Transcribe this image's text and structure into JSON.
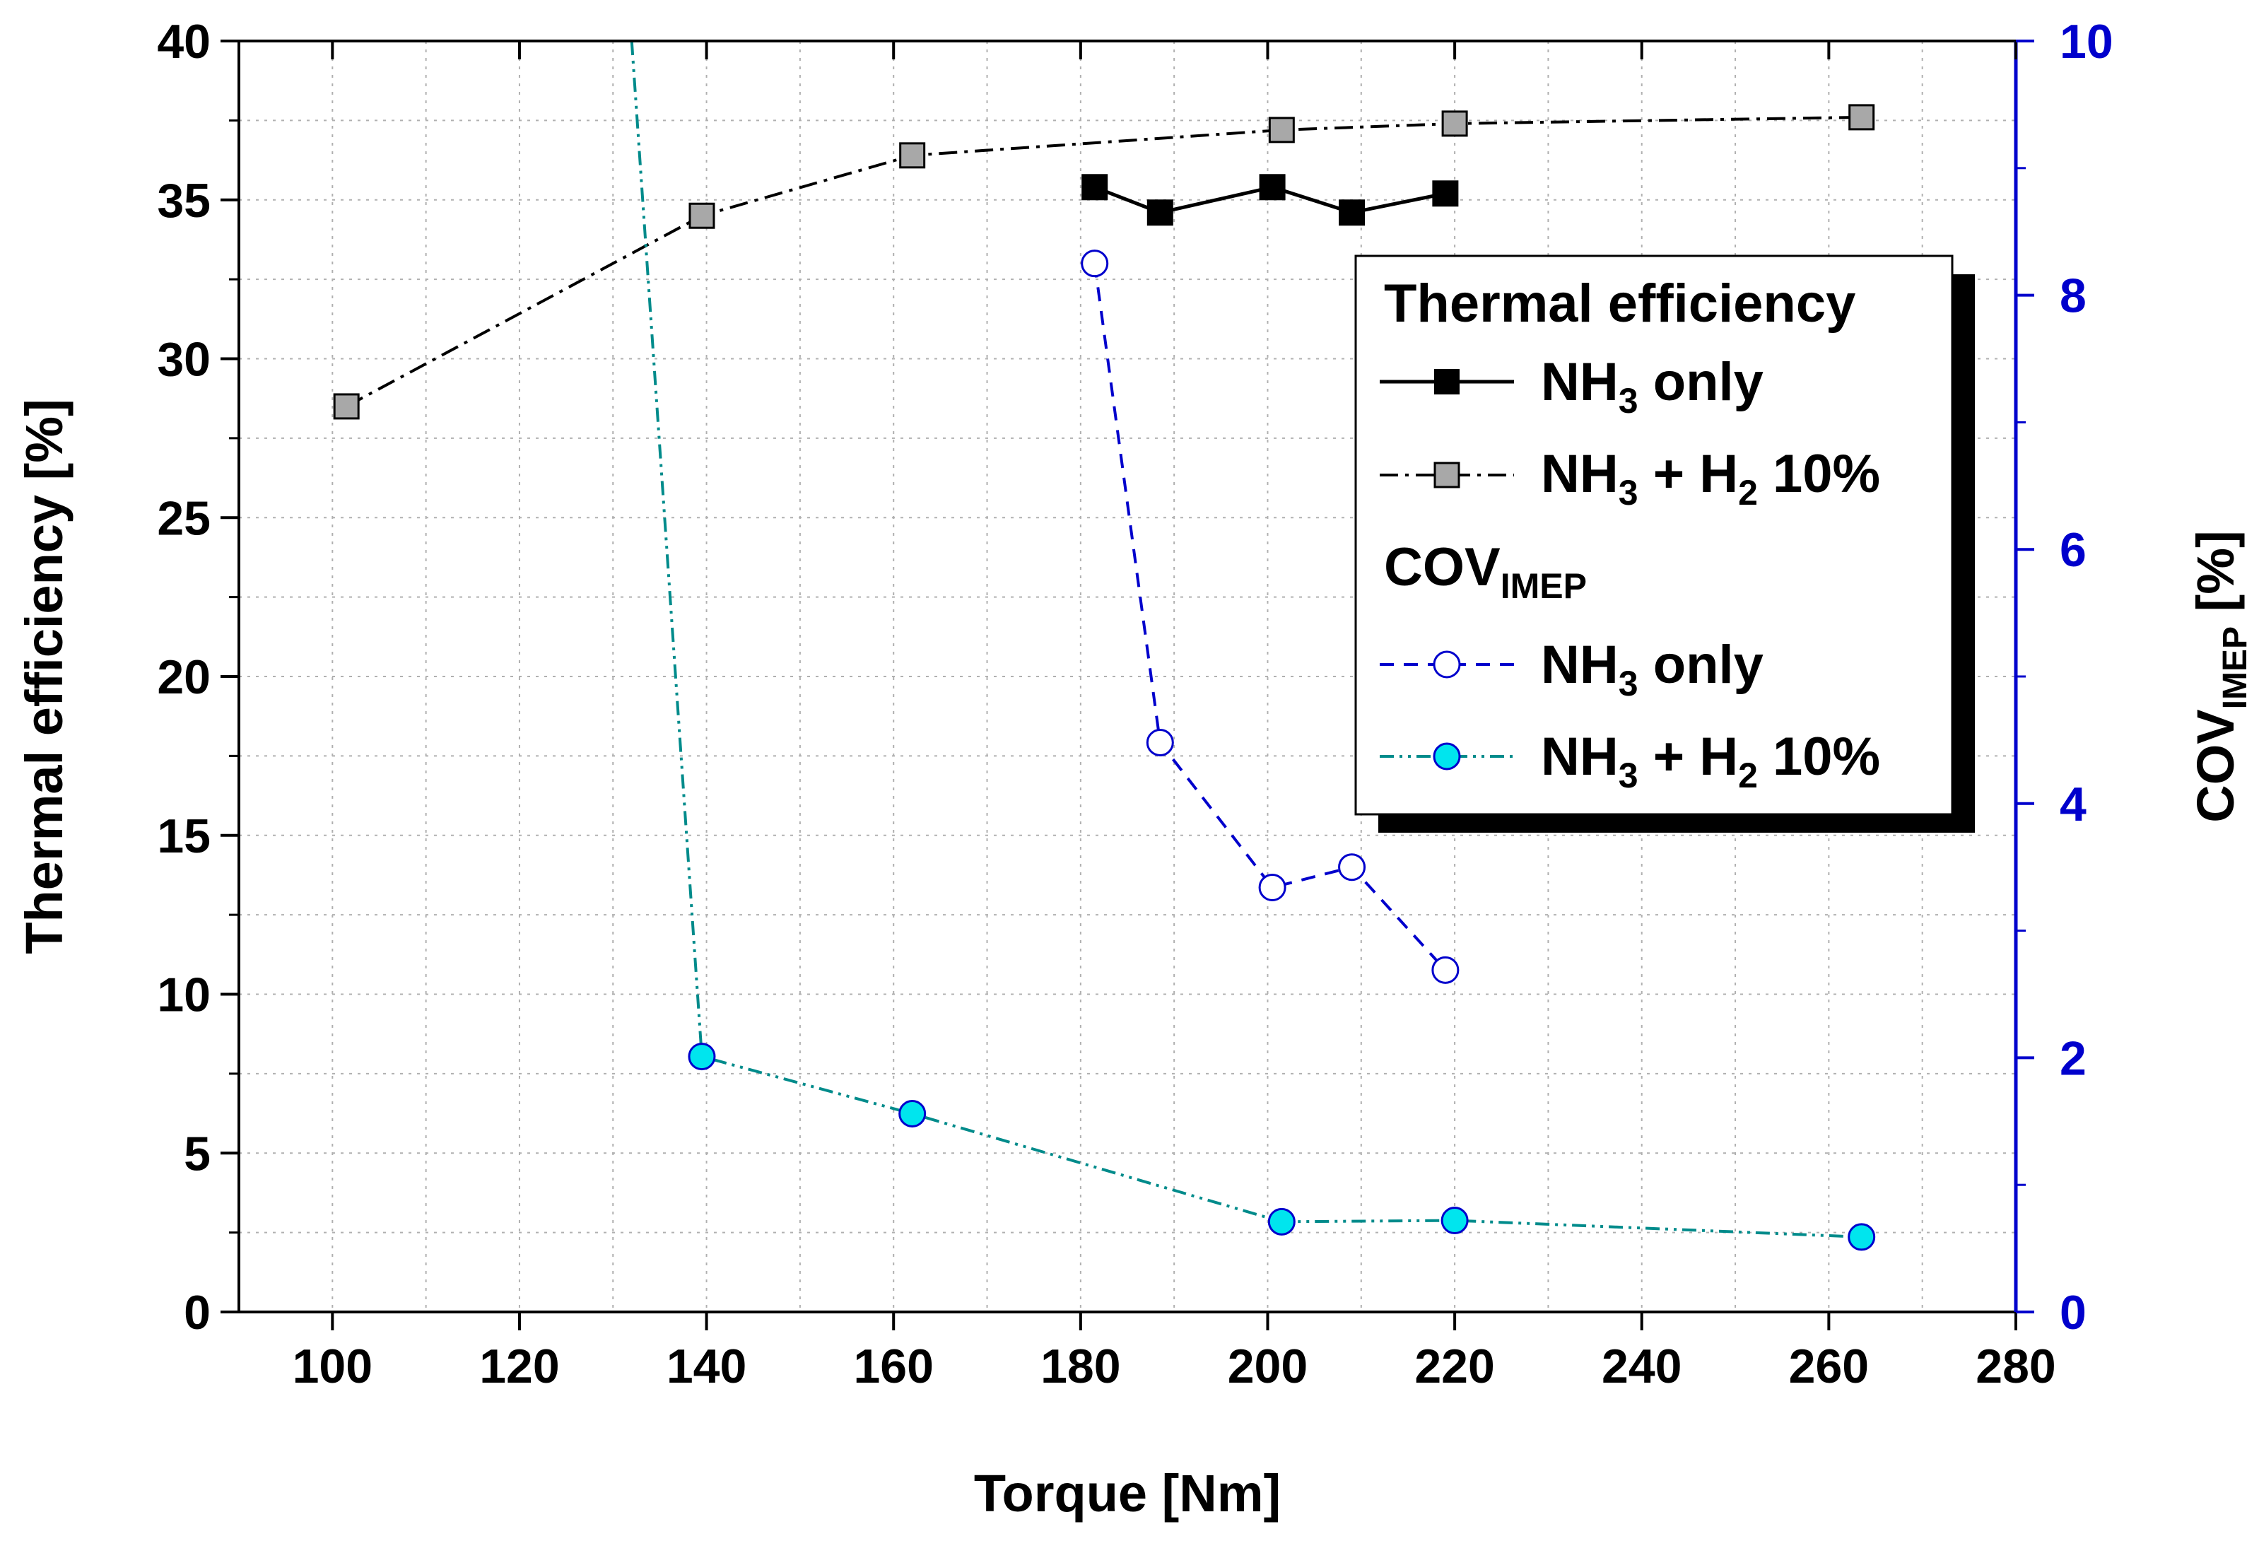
{
  "chart_data": {
    "type": "line",
    "xlabel": "Torque [Nm]",
    "ylabel": "Thermal efficiency [%]",
    "y2label": {
      "main": "COV",
      "sub": "IMEP",
      "suffix": " [%]"
    },
    "xlim": [
      90,
      280
    ],
    "ylim": [
      0,
      40
    ],
    "y2lim": [
      0,
      10
    ],
    "x_ticks": [
      100,
      120,
      140,
      160,
      180,
      200,
      220,
      240,
      260,
      280
    ],
    "y_ticks": [
      0,
      5,
      10,
      15,
      20,
      25,
      30,
      35,
      40
    ],
    "y2_ticks": [
      0,
      2,
      4,
      6,
      8,
      10
    ],
    "grid": true,
    "legend_position": "top-right",
    "legend": {
      "header_te": "Thermal efficiency",
      "header_cov": {
        "main": "COV",
        "sub": "IMEP"
      },
      "entries": [
        {
          "main": "NH",
          "sub": "3",
          "rest": " only"
        },
        {
          "main": "NH",
          "sub": "3",
          "mid": " + H",
          "sub2": "2",
          "rest": " 10%"
        },
        {
          "main": "NH",
          "sub": "3",
          "rest": " only"
        },
        {
          "main": "NH",
          "sub": "3",
          "mid": " + H",
          "sub2": "2",
          "rest": " 10%"
        }
      ]
    },
    "series": [
      {
        "name": "Thermal efficiency NH3 only",
        "axis": "left",
        "color": "#000000",
        "line": "solid",
        "marker": "square-filled",
        "marker_fill": "#000000",
        "x": [
          181.5,
          188.5,
          200.5,
          209,
          219
        ],
        "y": [
          35.4,
          34.6,
          35.4,
          34.6,
          35.2
        ]
      },
      {
        "name": "Thermal efficiency NH3 + H2 10%",
        "axis": "left",
        "color": "#000000",
        "line": "dash-dot",
        "marker": "square-filled",
        "marker_fill": "#a8a8a8",
        "x": [
          101.5,
          139.5,
          162,
          201.5,
          220,
          263.5
        ],
        "y": [
          28.5,
          34.5,
          36.4,
          37.2,
          37.4,
          37.6
        ]
      },
      {
        "name": "COV IMEP NH3 only",
        "axis": "right",
        "color": "#0000cc",
        "line": "dashed",
        "marker": "circle-open",
        "marker_fill": "#ffffff",
        "x": [
          181.5,
          188.5,
          200.5,
          209,
          219
        ],
        "y": [
          8.25,
          4.48,
          3.34,
          3.5,
          2.69
        ]
      },
      {
        "name": "COV IMEP NH3 + H2 10%",
        "axis": "right",
        "color": "#008b8b",
        "line": "dash-dot-dot",
        "marker": "circle-filled",
        "marker_fill": "#00e5ee",
        "x": [
          132,
          139.5,
          162,
          201.5,
          220,
          263.5
        ],
        "y": [
          10.0,
          2.01,
          1.56,
          0.71,
          0.72,
          0.59
        ],
        "marker_from_index": 1
      }
    ]
  }
}
